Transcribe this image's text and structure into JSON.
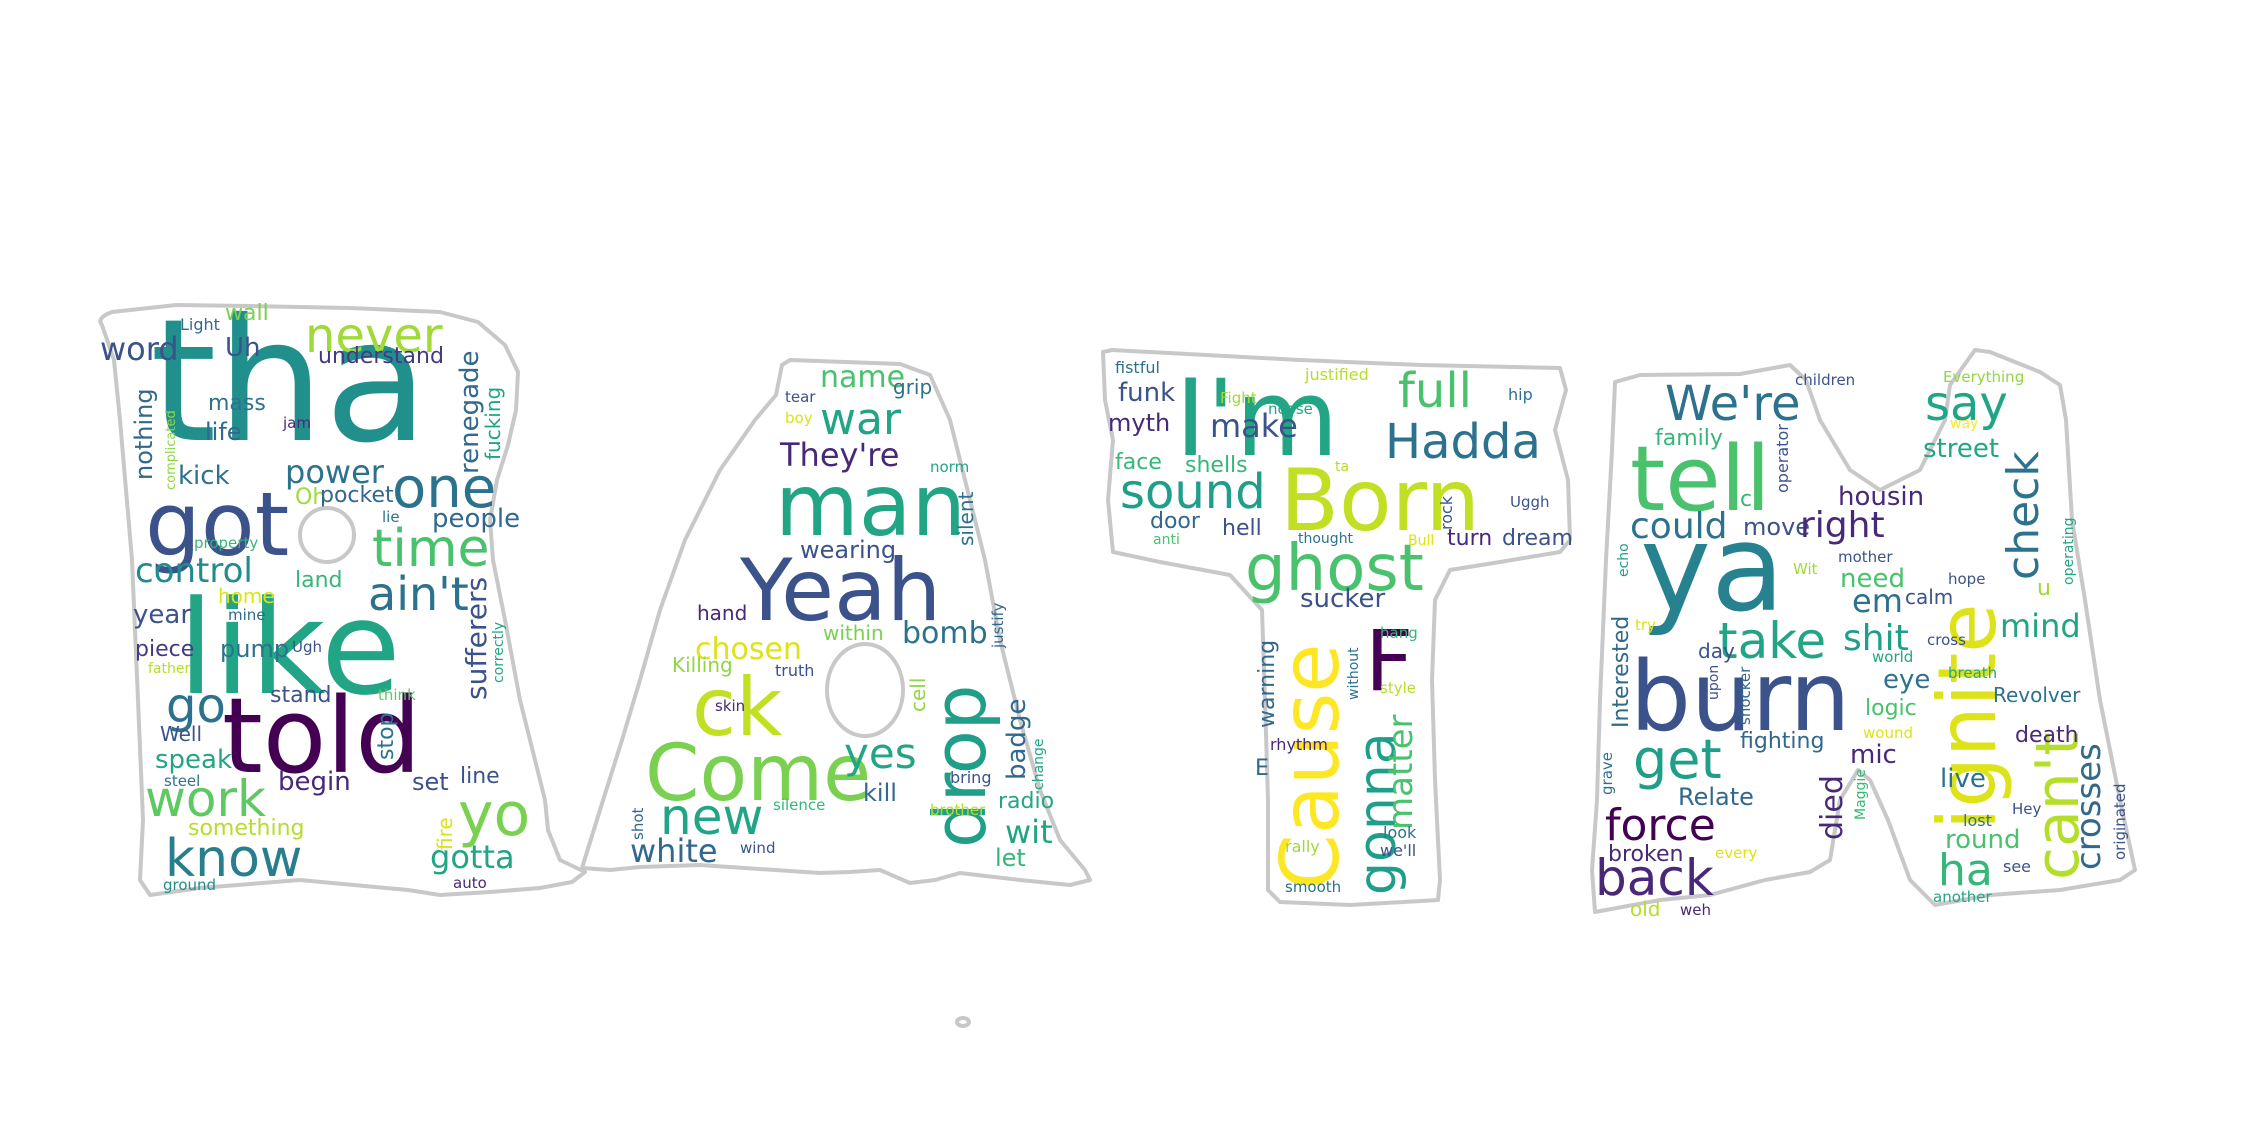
{
  "outline_color": "#c8c8c8",
  "background": "#ffffff",
  "palette": [
    "#440154",
    "#482878",
    "#3e4a89",
    "#31688e",
    "#26828e",
    "#1f9e89",
    "#35b779",
    "#6ece58",
    "#b5de2b",
    "#fde725"
  ],
  "words": [
    {
      "text": "tha",
      "color": "#21908d"
    },
    {
      "text": "got",
      "color": "#3b528b"
    },
    {
      "text": "like",
      "color": "#21a585"
    },
    {
      "text": "told",
      "color": "#440154"
    },
    {
      "text": "never",
      "color": "#a0da39"
    },
    {
      "text": "one",
      "color": "#2c728e"
    },
    {
      "text": "time",
      "color": "#4ac16d"
    },
    {
      "text": "ain't",
      "color": "#2c728e"
    },
    {
      "text": "control",
      "color": "#228c8d"
    },
    {
      "text": "power",
      "color": "#2c728e"
    },
    {
      "text": "work",
      "color": "#5ec962"
    },
    {
      "text": "know",
      "color": "#277f8e"
    },
    {
      "text": "yo",
      "color": "#7ad151"
    },
    {
      "text": "go",
      "color": "#2c728e"
    },
    {
      "text": "word",
      "color": "#3b528b"
    },
    {
      "text": "Uh",
      "color": "#3b528b"
    },
    {
      "text": "wall",
      "color": "#7ad151"
    },
    {
      "text": "Light",
      "color": "#31688e"
    },
    {
      "text": "understand",
      "color": "#443983"
    },
    {
      "text": "nothing",
      "color": "#31688e"
    },
    {
      "text": "mass",
      "color": "#2c728e"
    },
    {
      "text": "life",
      "color": "#31688e"
    },
    {
      "text": "jam",
      "color": "#482878"
    },
    {
      "text": "complicated",
      "color": "#90d743"
    },
    {
      "text": "kick",
      "color": "#2c728e"
    },
    {
      "text": "Oh",
      "color": "#a0da39"
    },
    {
      "text": "pocket",
      "color": "#31688e"
    },
    {
      "text": "renegade",
      "color": "#31688e"
    },
    {
      "text": "fucking",
      "color": "#21a585"
    },
    {
      "text": "lie",
      "color": "#2c728e"
    },
    {
      "text": "people",
      "color": "#31688e"
    },
    {
      "text": "property",
      "color": "#35b779"
    },
    {
      "text": "land",
      "color": "#35b779"
    },
    {
      "text": "home",
      "color": "#dde318"
    },
    {
      "text": "mine",
      "color": "#31688e"
    },
    {
      "text": "year",
      "color": "#3b528b"
    },
    {
      "text": "piece",
      "color": "#443983"
    },
    {
      "text": "pump",
      "color": "#2c728e"
    },
    {
      "text": "Ugh",
      "color": "#3b528b"
    },
    {
      "text": "father",
      "color": "#b5de2b"
    },
    {
      "text": "sufferers",
      "color": "#3b528b"
    },
    {
      "text": "correctly",
      "color": "#21a585"
    },
    {
      "text": "stand",
      "color": "#3b528b"
    },
    {
      "text": "think",
      "color": "#5ec962"
    },
    {
      "text": "stop",
      "color": "#2c728e"
    },
    {
      "text": "Well",
      "color": "#3b528b"
    },
    {
      "text": "speak",
      "color": "#21a585"
    },
    {
      "text": "begin",
      "color": "#482878"
    },
    {
      "text": "set",
      "color": "#3b528b"
    },
    {
      "text": "line",
      "color": "#3b528b"
    },
    {
      "text": "steel",
      "color": "#2c728e"
    },
    {
      "text": "something",
      "color": "#b5de2b"
    },
    {
      "text": "fire",
      "color": "#dde318"
    },
    {
      "text": "gotta",
      "color": "#21a585"
    },
    {
      "text": "auto",
      "color": "#482878"
    },
    {
      "text": "ground",
      "color": "#228c8d"
    },
    {
      "text": "name",
      "color": "#4ac16d"
    },
    {
      "text": "grip",
      "color": "#2c728e"
    },
    {
      "text": "tear",
      "color": "#3b528b"
    },
    {
      "text": "boy",
      "color": "#dde318"
    },
    {
      "text": "war",
      "color": "#21a585"
    },
    {
      "text": "They're",
      "color": "#482878"
    },
    {
      "text": "norm",
      "color": "#21a585"
    },
    {
      "text": "man",
      "color": "#21a585"
    },
    {
      "text": "silent",
      "color": "#2c728e"
    },
    {
      "text": "wearing",
      "color": "#3b528b"
    },
    {
      "text": "Yeah",
      "color": "#3b528b"
    },
    {
      "text": "hand",
      "color": "#482878"
    },
    {
      "text": "within",
      "color": "#7ad151"
    },
    {
      "text": "bomb",
      "color": "#2c728e"
    },
    {
      "text": "chosen",
      "color": "#dde318"
    },
    {
      "text": "justify",
      "color": "#31688e"
    },
    {
      "text": "Killing",
      "color": "#90d743"
    },
    {
      "text": "truth",
      "color": "#3b528b"
    },
    {
      "text": "ck",
      "color": "#c2df23"
    },
    {
      "text": "skin",
      "color": "#482878"
    },
    {
      "text": "cell",
      "color": "#90d743"
    },
    {
      "text": "drop",
      "color": "#1f9e89"
    },
    {
      "text": "badge",
      "color": "#31688e"
    },
    {
      "text": "change",
      "color": "#21a585"
    },
    {
      "text": "Come",
      "color": "#7ad151"
    },
    {
      "text": "yes",
      "color": "#21a585"
    },
    {
      "text": "kill",
      "color": "#31688e"
    },
    {
      "text": "bring",
      "color": "#3b528b"
    },
    {
      "text": "radio",
      "color": "#21a585"
    },
    {
      "text": "new",
      "color": "#21a585"
    },
    {
      "text": "silence",
      "color": "#35b779"
    },
    {
      "text": "brother",
      "color": "#b5de2b"
    },
    {
      "text": "shot",
      "color": "#31688e"
    },
    {
      "text": "white",
      "color": "#31688e"
    },
    {
      "text": "wind",
      "color": "#3b528b"
    },
    {
      "text": "wit",
      "color": "#21a585"
    },
    {
      "text": "let",
      "color": "#35b779"
    },
    {
      "text": "fistful",
      "color": "#2c728e"
    },
    {
      "text": "funk",
      "color": "#3b528b"
    },
    {
      "text": "myth",
      "color": "#482878"
    },
    {
      "text": "face",
      "color": "#35b779"
    },
    {
      "text": "I'm",
      "color": "#21a585"
    },
    {
      "text": "justified",
      "color": "#b5de2b"
    },
    {
      "text": "Fight",
      "color": "#a0da39"
    },
    {
      "text": "noose",
      "color": "#21a585"
    },
    {
      "text": "full",
      "color": "#4ac16d"
    },
    {
      "text": "hip",
      "color": "#2c728e"
    },
    {
      "text": "make",
      "color": "#3b528b"
    },
    {
      "text": "Hadda",
      "color": "#2c728e"
    },
    {
      "text": "shells",
      "color": "#35b779"
    },
    {
      "text": "ta",
      "color": "#b5de2b"
    },
    {
      "text": "sound",
      "color": "#1f9e89"
    },
    {
      "text": "Born",
      "color": "#c2df23"
    },
    {
      "text": "door",
      "color": "#31688e"
    },
    {
      "text": "hell",
      "color": "#3b528b"
    },
    {
      "text": "anti",
      "color": "#4ac16d"
    },
    {
      "text": "rock",
      "color": "#3b528b"
    },
    {
      "text": "Uggh",
      "color": "#3b528b"
    },
    {
      "text": "thought",
      "color": "#2c728e"
    },
    {
      "text": "Bull",
      "color": "#dde318"
    },
    {
      "text": "turn",
      "color": "#482878"
    },
    {
      "text": "dream",
      "color": "#3b528b"
    },
    {
      "text": "ghost",
      "color": "#4ac16d"
    },
    {
      "text": "sucker",
      "color": "#3b528b"
    },
    {
      "text": "Cause",
      "color": "#fde725"
    },
    {
      "text": "F",
      "color": "#440154"
    },
    {
      "text": "hang",
      "color": "#35b779"
    },
    {
      "text": "warning",
      "color": "#31688e"
    },
    {
      "text": "without",
      "color": "#2c728e"
    },
    {
      "text": "style",
      "color": "#b5de2b"
    },
    {
      "text": "gonna",
      "color": "#1f9e89"
    },
    {
      "text": "matter",
      "color": "#4ac16d"
    },
    {
      "text": "rhythm",
      "color": "#482878"
    },
    {
      "text": "E",
      "color": "#31688e"
    },
    {
      "text": "look",
      "color": "#2c728e"
    },
    {
      "text": "we'll",
      "color": "#3b528b"
    },
    {
      "text": "rally",
      "color": "#a0da39"
    },
    {
      "text": "smooth",
      "color": "#2c728e"
    },
    {
      "text": "We're",
      "color": "#2c728e"
    },
    {
      "text": "children",
      "color": "#3b528b"
    },
    {
      "text": "Everything",
      "color": "#90d743"
    },
    {
      "text": "say",
      "color": "#21a585"
    },
    {
      "text": "way",
      "color": "#fde725"
    },
    {
      "text": "tell",
      "color": "#4ac16d"
    },
    {
      "text": "family",
      "color": "#35b779"
    },
    {
      "text": "operator",
      "color": "#3b528b"
    },
    {
      "text": "street",
      "color": "#21a585"
    },
    {
      "text": "check",
      "color": "#2c728e"
    },
    {
      "text": "ignite",
      "color": "#dde318"
    },
    {
      "text": "c",
      "color": "#35b779"
    },
    {
      "text": "housin",
      "color": "#482878"
    },
    {
      "text": "could",
      "color": "#2c728e"
    },
    {
      "text": "move",
      "color": "#3b528b"
    },
    {
      "text": "right",
      "color": "#482878"
    },
    {
      "text": "ya",
      "color": "#26828e"
    },
    {
      "text": "mother",
      "color": "#3b528b"
    },
    {
      "text": "Wit",
      "color": "#a0da39"
    },
    {
      "text": "hope",
      "color": "#3b528b"
    },
    {
      "text": "need",
      "color": "#4ac16d"
    },
    {
      "text": "operating",
      "color": "#21a585"
    },
    {
      "text": "echo",
      "color": "#1f9e89"
    },
    {
      "text": "em",
      "color": "#2c728e"
    },
    {
      "text": "calm",
      "color": "#3b528b"
    },
    {
      "text": "u",
      "color": "#a0da39"
    },
    {
      "text": "try",
      "color": "#dde318"
    },
    {
      "text": "Interested",
      "color": "#31688e"
    },
    {
      "text": "take",
      "color": "#21a585"
    },
    {
      "text": "mind",
      "color": "#21a585"
    },
    {
      "text": "shit",
      "color": "#1f9e89"
    },
    {
      "text": "cross",
      "color": "#3b528b"
    },
    {
      "text": "can't",
      "color": "#b5de2b"
    },
    {
      "text": "day",
      "color": "#3b528b"
    },
    {
      "text": "world",
      "color": "#21a585"
    },
    {
      "text": "burn",
      "color": "#3b528b"
    },
    {
      "text": "upon",
      "color": "#3b528b"
    },
    {
      "text": "eye",
      "color": "#2c728e"
    },
    {
      "text": "breath",
      "color": "#21a585"
    },
    {
      "text": "shocker",
      "color": "#31688e"
    },
    {
      "text": "Revolver",
      "color": "#2c728e"
    },
    {
      "text": "logic",
      "color": "#4ac16d"
    },
    {
      "text": "crosses",
      "color": "#31688e"
    },
    {
      "text": "wound",
      "color": "#dde318"
    },
    {
      "text": "fighting",
      "color": "#31688e"
    },
    {
      "text": "death",
      "color": "#482878"
    },
    {
      "text": "get",
      "color": "#1f9e89"
    },
    {
      "text": "mic",
      "color": "#482878"
    },
    {
      "text": "grave",
      "color": "#2c728e"
    },
    {
      "text": "died",
      "color": "#482878"
    },
    {
      "text": "live",
      "color": "#2c728e"
    },
    {
      "text": "originated",
      "color": "#3b528b"
    },
    {
      "text": "Relate",
      "color": "#31688e"
    },
    {
      "text": "Maggie",
      "color": "#35b779"
    },
    {
      "text": "Hey",
      "color": "#3b528b"
    },
    {
      "text": "force",
      "color": "#440154"
    },
    {
      "text": "lost",
      "color": "#2c728e"
    },
    {
      "text": "round",
      "color": "#4ac16d"
    },
    {
      "text": "broken",
      "color": "#482878"
    },
    {
      "text": "every",
      "color": "#dde318"
    },
    {
      "text": "see",
      "color": "#3b528b"
    },
    {
      "text": "back",
      "color": "#482878"
    },
    {
      "text": "ha",
      "color": "#35b779"
    },
    {
      "text": "old",
      "color": "#b5de2b"
    },
    {
      "text": "weh",
      "color": "#482878"
    },
    {
      "text": "another",
      "color": "#21a585"
    }
  ]
}
